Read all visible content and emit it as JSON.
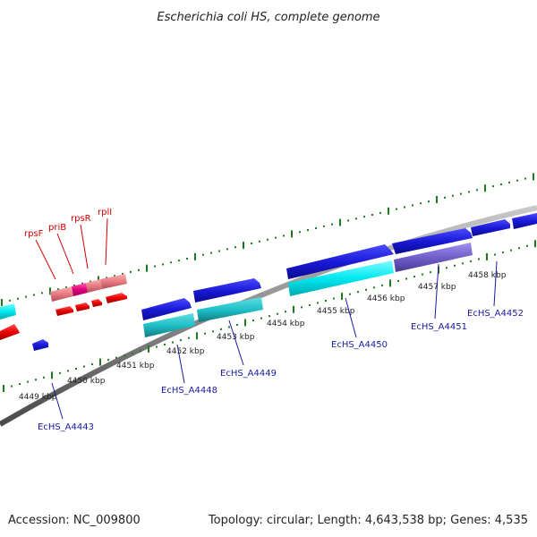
{
  "title": "Escherichia coli HS, complete genome",
  "footer": {
    "accession": "Accession: NC_009800",
    "summary": "Topology: circular; Length: 4,643,538 bp; Genes: 4,535"
  },
  "colors": {
    "backbone": "#8a8a8a",
    "tick": "#1e7a1e",
    "blue": "#1a1ad0",
    "cyan": "#00e8f0",
    "teal": "#20c0c8",
    "purple": "#7060c8",
    "red": "#e00000",
    "pink": "#e87a82",
    "magenta": "#e0007a",
    "label_blue": "#1a1aa0",
    "label_red": "#d00000"
  },
  "kbp_labels": [
    "4449 kbp",
    "4450 kbp",
    "4451 kbp",
    "4452 kbp",
    "4453 kbp",
    "4454 kbp",
    "4455 kbp",
    "4456 kbp",
    "4457 kbp",
    "4458 kbp"
  ],
  "blue_genes": [
    "EcHS_A4443",
    "EcHS_A4448",
    "EcHS_A4449",
    "EcHS_A4450",
    "EcHS_A4451",
    "EcHS_A4452"
  ],
  "red_genes": [
    "rpsF",
    "priB",
    "rpsR",
    "rplI"
  ]
}
